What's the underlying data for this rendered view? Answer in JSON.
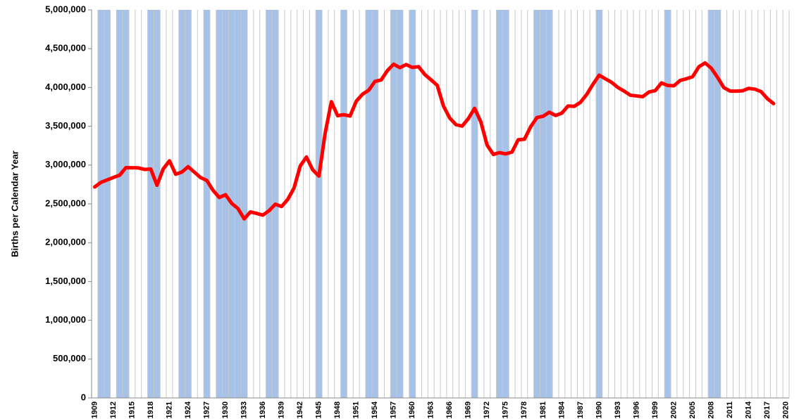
{
  "chart_data": {
    "type": "line",
    "y_label": "Births per Calendar Year",
    "categories": [
      "1909",
      null,
      null,
      "1912",
      null,
      null,
      "1915",
      null,
      null,
      "1918",
      null,
      null,
      "1921",
      null,
      null,
      "1924",
      null,
      null,
      "1927",
      null,
      null,
      "1930",
      null,
      null,
      "1933",
      null,
      null,
      "1936",
      null,
      null,
      "1939",
      null,
      null,
      "1942",
      null,
      null,
      "1945",
      null,
      null,
      "1948",
      null,
      null,
      "1951",
      null,
      null,
      "1954",
      null,
      null,
      "1957",
      null,
      null,
      "1960",
      null,
      null,
      "1963",
      null,
      null,
      "1966",
      null,
      null,
      "1969",
      null,
      null,
      "1972",
      null,
      null,
      "1975",
      null,
      null,
      "1978",
      null,
      null,
      "1981",
      null,
      null,
      "1984",
      null,
      null,
      "1987",
      null,
      null,
      "1990",
      null,
      null,
      "1993",
      null,
      null,
      "1996",
      null,
      null,
      "1999",
      null,
      null,
      "2002",
      null,
      null,
      "2005",
      null,
      null,
      "2008",
      null,
      null,
      "2011",
      null,
      null,
      "2014",
      null,
      null,
      "2017",
      null,
      null,
      "2020"
    ],
    "first_year": 1909,
    "values": [
      2718000,
      2777000,
      2809000,
      2840000,
      2869000,
      2966000,
      2965000,
      2964000,
      2944000,
      2948000,
      2740000,
      2950000,
      3055000,
      2882000,
      2910000,
      2979000,
      2909000,
      2839000,
      2802000,
      2674000,
      2582000,
      2618000,
      2506000,
      2440000,
      2307000,
      2396000,
      2377000,
      2355000,
      2413000,
      2496000,
      2466000,
      2559000,
      2703000,
      2989000,
      3104000,
      2939000,
      2858000,
      3411000,
      3817000,
      3637000,
      3649000,
      3632000,
      3823000,
      3913000,
      3965000,
      4078000,
      4097000,
      4218000,
      4300000,
      4255000,
      4295000,
      4258000,
      4268000,
      4167000,
      4098000,
      4027000,
      3760000,
      3606000,
      3521000,
      3502000,
      3600000,
      3731000,
      3556000,
      3258000,
      3137000,
      3160000,
      3144000,
      3168000,
      3327000,
      3333000,
      3494000,
      3612000,
      3629000,
      3681000,
      3639000,
      3669000,
      3761000,
      3757000,
      3809000,
      3910000,
      4041000,
      4158000,
      4111000,
      4065000,
      4000000,
      3953000,
      3900000,
      3891000,
      3881000,
      3942000,
      3959000,
      4059000,
      4026000,
      4022000,
      4090000,
      4112000,
      4138000,
      4266000,
      4316000,
      4248000,
      4131000,
      3999000,
      3954000,
      3953000,
      3957000,
      3988000,
      3978000,
      3946000,
      3856000,
      3792000,
      null,
      null
    ],
    "color": "#ff0000",
    "shaded_periods": [
      [
        1910,
        1911
      ],
      [
        1913,
        1914
      ],
      [
        1918,
        1919
      ],
      [
        1923,
        1924
      ],
      [
        1927,
        1927
      ],
      [
        1929,
        1933
      ],
      [
        1937,
        1938
      ],
      [
        1945,
        1945
      ],
      [
        1949,
        1949
      ],
      [
        1953,
        1954
      ],
      [
        1957,
        1958
      ],
      [
        1960,
        1960
      ],
      [
        1970,
        1970
      ],
      [
        1974,
        1975
      ],
      [
        1980,
        1982
      ],
      [
        1990,
        1990
      ],
      [
        2001,
        2001
      ],
      [
        2008,
        2009
      ]
    ],
    "shade_color": "#a7c2e8",
    "ylim": [
      0,
      5000000
    ],
    "yticks": [
      0,
      {
        "value": 500000,
        "label": "500,000"
      },
      {
        "value": 1000000,
        "label": "1,000,000"
      },
      {
        "value": 1500000,
        "label": "1,500,000"
      },
      {
        "value": 2000000,
        "label": "2,000,000"
      },
      {
        "value": 2500000,
        "label": "2,500,000"
      },
      {
        "value": 3000000,
        "label": "3,000,000"
      },
      {
        "value": 3500000,
        "label": "3,500,000"
      },
      {
        "value": 4000000,
        "label": "4,000,000"
      },
      {
        "value": 4500000,
        "label": "4,500,000"
      },
      {
        "value": 5000000,
        "label": "5,000,000"
      }
    ],
    "grid": true
  }
}
